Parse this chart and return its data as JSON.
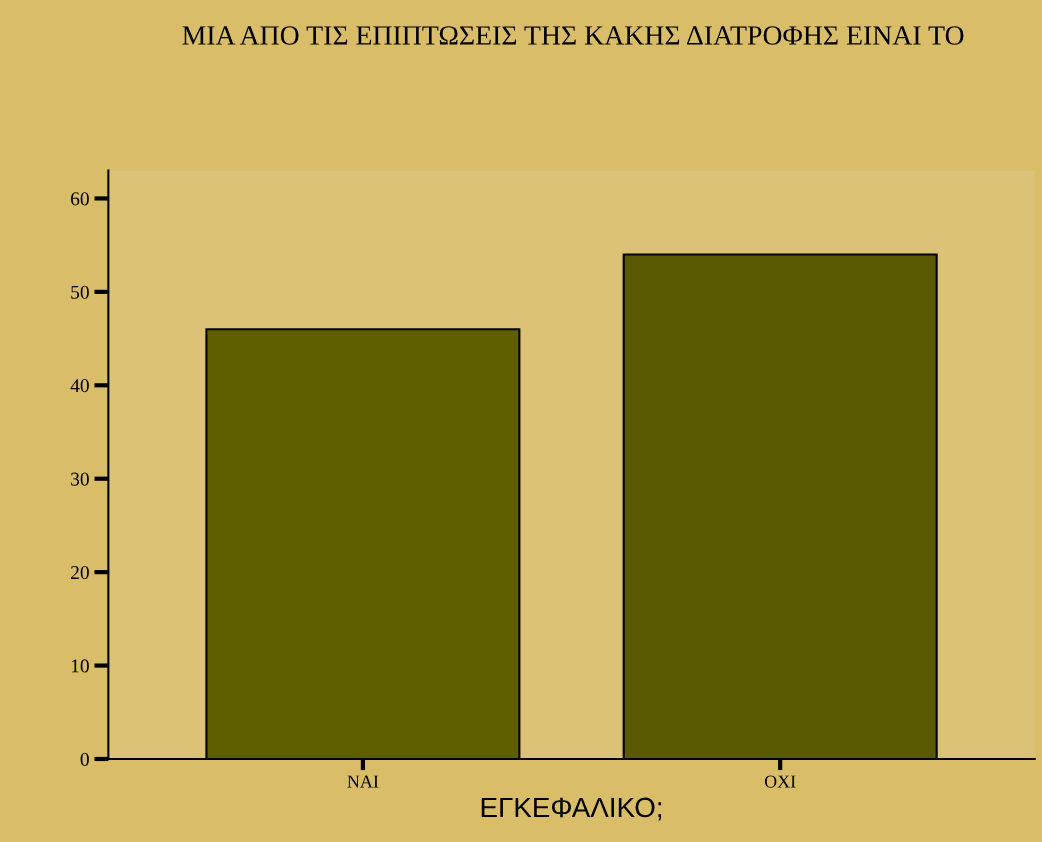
{
  "chart_data": {
    "type": "bar",
    "title": "ΜΙΑ ΑΠΟ ΤΙΣ ΕΠΙΠΤΩΣΕΙΣ ΤΗΣ ΚΑΚΗΣ ΔΙΑΤΡΟΦΗΣ ΕΙΝΑΙ ΤΟ",
    "xlabel": "ΕΓΚΕΦΑΛΙΚΟ;",
    "categories": [
      "ΝΑΙ",
      "ΟΧΙ"
    ],
    "values": [
      46,
      54
    ],
    "colors": [
      "#5f5f00",
      "#5a5a02"
    ],
    "ylim": [
      0,
      63
    ],
    "yticks": [
      0,
      10,
      20,
      30,
      40,
      50,
      60
    ],
    "grid": false
  }
}
